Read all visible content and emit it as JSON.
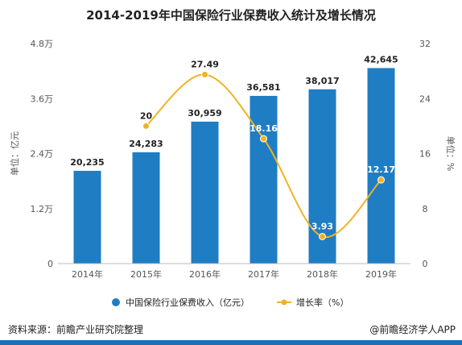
{
  "title": "2014-2019年中国保险行业保费收入统计及增长情况",
  "chart_data": {
    "type": "bar",
    "categories": [
      "2014年",
      "2015年",
      "2016年",
      "2017年",
      "2018年",
      "2019年"
    ],
    "series": [
      {
        "name": "中国保险行业保费收入（亿元）",
        "type": "bar",
        "axis": "left",
        "values": [
          20235,
          24283,
          30959,
          36581,
          38017,
          42645
        ],
        "labels": [
          "20,235",
          "24,283",
          "30,959",
          "36,581",
          "38,017",
          "42,645"
        ]
      },
      {
        "name": "增长率（%）",
        "type": "line",
        "axis": "right",
        "values": [
          null,
          20,
          27.49,
          18.16,
          3.93,
          12.17
        ],
        "labels": [
          "",
          "20",
          "27.49",
          "18.16",
          "3.93",
          "12.17"
        ]
      }
    ],
    "y_left": {
      "label": "单位：亿元",
      "range": [
        0,
        48000
      ],
      "ticks": [
        0,
        12000,
        24000,
        36000,
        48000
      ],
      "tick_labels": [
        "0",
        "1.2万",
        "2.4万",
        "3.6万",
        "4.8万"
      ]
    },
    "y_right": {
      "label": "单位：%",
      "range": [
        0,
        32
      ],
      "ticks": [
        0,
        8,
        16,
        24,
        32
      ],
      "tick_labels": [
        "0",
        "8",
        "16",
        "24",
        "32"
      ]
    },
    "legend_position": "bottom",
    "grid": false,
    "colors": {
      "bar": "#1f7dc4",
      "line": "#f0b323"
    }
  },
  "footer": {
    "source": "资料来源：前瞻产业研究院整理",
    "brand": "@前瞻经济学人APP"
  }
}
